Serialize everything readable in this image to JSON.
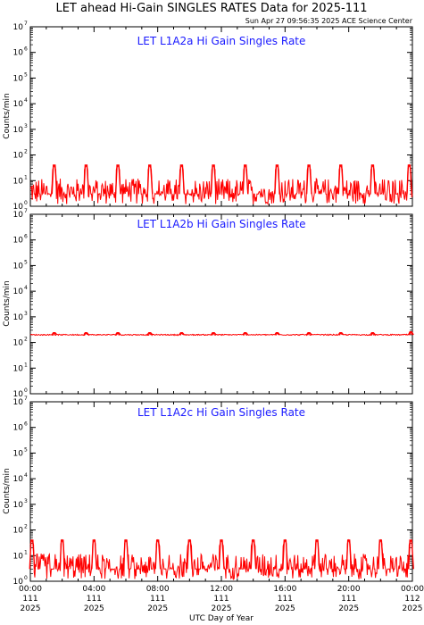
{
  "page": {
    "title": "LET ahead Hi-Gain SINGLES RATES Data for 2025-111",
    "timestamp": "Sun Apr 27 09:56:35 2025 ACE Science Center",
    "xlabel": "UTC Day of Year"
  },
  "colors": {
    "data": "#ff0000",
    "panel_label": "#1a1aff",
    "axes": "#000000"
  },
  "chart_data": [
    {
      "type": "line",
      "title": "LET L1A2a Hi Gain Singles Rate",
      "ylabel": "Counts/min",
      "yscale": "log",
      "ylim": [
        1,
        10000000
      ],
      "ytick_exponents": [
        "0",
        "1",
        "2",
        "3",
        "4",
        "5",
        "6",
        "7"
      ],
      "xlim_hours": [
        0,
        24
      ],
      "baseline": 3,
      "noise_range": [
        1.2,
        12
      ],
      "spikes": [
        {
          "hour": 1.5,
          "value": 40
        },
        {
          "hour": 3.5,
          "value": 40
        },
        {
          "hour": 5.5,
          "value": 40
        },
        {
          "hour": 7.5,
          "value": 40
        },
        {
          "hour": 9.5,
          "value": 40
        },
        {
          "hour": 11.5,
          "value": 40
        },
        {
          "hour": 13.5,
          "value": 40
        },
        {
          "hour": 15.5,
          "value": 40
        },
        {
          "hour": 17.5,
          "value": 40
        },
        {
          "hour": 19.5,
          "value": 40
        },
        {
          "hour": 21.5,
          "value": 40
        },
        {
          "hour": 23.8,
          "value": 40
        }
      ]
    },
    {
      "type": "line",
      "title": "LET L1A2b Hi Gain Singles Rate",
      "ylabel": "Counts/min",
      "yscale": "log",
      "ylim": [
        1,
        10000000
      ],
      "ytick_exponents": [
        "0",
        "1",
        "2",
        "3",
        "4",
        "5",
        "6",
        "7"
      ],
      "xlim_hours": [
        0,
        24
      ],
      "baseline": 200,
      "noise_range": [
        180,
        230
      ],
      "spikes": [
        {
          "hour": 1.5,
          "value": 240
        },
        {
          "hour": 3.5,
          "value": 240
        },
        {
          "hour": 5.5,
          "value": 240
        },
        {
          "hour": 7.5,
          "value": 240
        },
        {
          "hour": 9.5,
          "value": 240
        },
        {
          "hour": 11.5,
          "value": 240
        },
        {
          "hour": 13.5,
          "value": 240
        },
        {
          "hour": 15.5,
          "value": 240
        },
        {
          "hour": 17.5,
          "value": 240
        },
        {
          "hour": 19.5,
          "value": 240
        },
        {
          "hour": 21.5,
          "value": 240
        },
        {
          "hour": 23.9,
          "value": 260
        }
      ]
    },
    {
      "type": "line",
      "title": "LET L1A2c Hi Gain Singles Rate",
      "ylabel": "Counts/min",
      "yscale": "log",
      "ylim": [
        1,
        10000000
      ],
      "ytick_exponents": [
        "0",
        "1",
        "2",
        "3",
        "4",
        "5",
        "6",
        "7"
      ],
      "xlim_hours": [
        0,
        24
      ],
      "baseline": 3,
      "noise_range": [
        1.2,
        12
      ],
      "spikes": [
        {
          "hour": 0.1,
          "value": 40
        },
        {
          "hour": 2.0,
          "value": 40
        },
        {
          "hour": 4.0,
          "value": 40
        },
        {
          "hour": 6.0,
          "value": 40
        },
        {
          "hour": 8.0,
          "value": 40
        },
        {
          "hour": 10.0,
          "value": 40
        },
        {
          "hour": 12.0,
          "value": 40
        },
        {
          "hour": 14.0,
          "value": 40
        },
        {
          "hour": 16.0,
          "value": 40
        },
        {
          "hour": 18.0,
          "value": 40
        },
        {
          "hour": 20.0,
          "value": 40
        },
        {
          "hour": 22.0,
          "value": 40
        },
        {
          "hour": 23.9,
          "value": 40
        }
      ]
    }
  ],
  "x_ticks": [
    {
      "time": "00:00",
      "day": "111",
      "year": "2025"
    },
    {
      "time": "04:00",
      "day": "111",
      "year": "2025"
    },
    {
      "time": "08:00",
      "day": "111",
      "year": "2025"
    },
    {
      "time": "12:00",
      "day": "111",
      "year": "2025"
    },
    {
      "time": "16:00",
      "day": "111",
      "year": "2025"
    },
    {
      "time": "20:00",
      "day": "111",
      "year": "2025"
    },
    {
      "time": "00:00",
      "day": "112",
      "year": "2025"
    }
  ]
}
